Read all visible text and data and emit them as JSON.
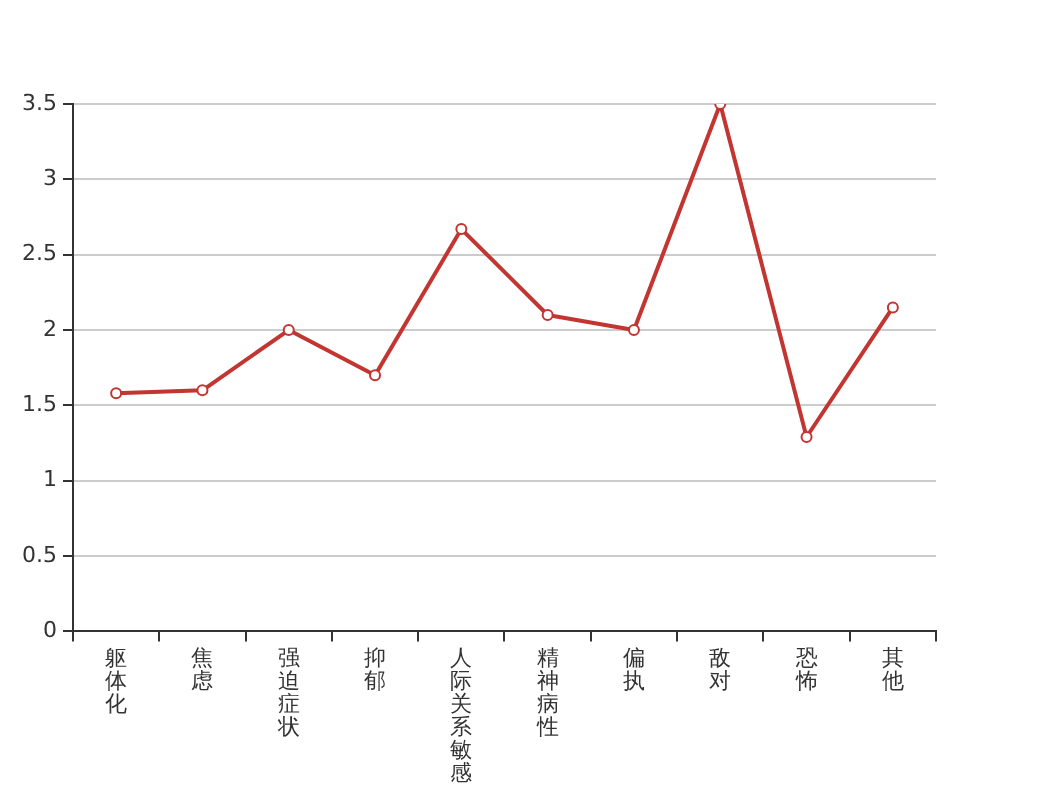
{
  "chart_data": {
    "type": "line",
    "categories": [
      "躯体化",
      "焦虑",
      "强迫症状",
      "抑郁",
      "人际关系敏感",
      "精神病性",
      "偏执",
      "敌对",
      "恐怖",
      "其他"
    ],
    "series": [
      {
        "color": "#c23531",
        "values": [
          1.58,
          1.6,
          2.0,
          1.7,
          2.67,
          2.1,
          2.0,
          3.5,
          1.29,
          2.15
        ]
      }
    ],
    "ylim": [
      0,
      3.5
    ],
    "yticks": [
      0,
      0.5,
      1,
      1.5,
      2,
      2.5,
      3,
      3.5
    ],
    "grid": "y",
    "legend": false,
    "marker": "circle",
    "line_style": "solid"
  }
}
